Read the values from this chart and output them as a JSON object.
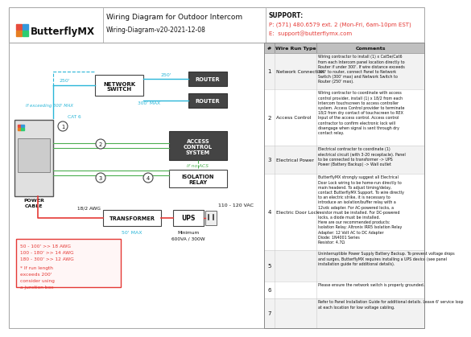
{
  "title": "Wiring Diagram for Outdoor Intercom",
  "subtitle": "Wiring-Diagram-v20-2021-12-08",
  "logo_text": "ButterflyMX",
  "support_label": "SUPPORT:",
  "support_phone": "P: (571) 480.6579 ext. 2 (Mon-Fri, 6am-10pm EST)",
  "support_email": "E:  support@butterflymx.com",
  "bg_color": "#ffffff",
  "cyan_color": "#29b6d8",
  "green_color": "#4caf50",
  "red_color": "#e53935",
  "wire_run_rows": [
    {
      "num": "1",
      "type": "Network Connection",
      "comment": "Wiring contractor to install (1) x Cat5e/Cat6\nfrom each Intercom panel location directly to\nRouter if under 300'. If wire distance exceeds\n300' to router, connect Panel to Network\nSwitch (300' max) and Network Switch to\nRouter (250' max)."
    },
    {
      "num": "2",
      "type": "Access Control",
      "comment": "Wiring contractor to coordinate with access\ncontrol provider, install (1) x 18/2 from each\nIntercom touchscreen to access controller\nsystem. Access Control provider to terminate\n18/2 from dry contact of touchscreen to REX\nInput of the access control. Access control\ncontractor to confirm electronic lock will\ndisengage when signal is sent through dry\ncontact relay."
    },
    {
      "num": "3",
      "type": "Electrical Power",
      "comment": "Electrical contractor to coordinate (1)\nelectrical circuit (with 3-20 receptacle). Panel\nto be connected to transformer -> UPS\nPower (Battery Backup) -> Wall outlet"
    },
    {
      "num": "4",
      "type": "Electric Door Lock",
      "comment": "ButterflyMX strongly suggest all Electrical\nDoor Lock wiring to be home-run directly to\nmain headend. To adjust timing/delay,\ncontact ButterflyMX Support. To wire directly\nto an electric strike, it is necessary to\nintroduce an isolation/buffer relay with a\n12vdc adapter. For AC-powered locks, a\nresistor must be installed. For DC-powered\nlocks, a diode must be installed.\nHere are our recommended products:\nIsolation Relay: Altronix IRR5 Isolation Relay\nAdapter: 12 Volt AC to DC Adapter\nDiode: 1N4001 Series\nResistor: 4.7Ω"
    },
    {
      "num": "5",
      "type": "",
      "comment": "Uninterruptible Power Supply Battery Backup. To prevent voltage drops\nand surges, ButterflyMX requires installing a UPS device (see panel\ninstallation guide for additional details)."
    },
    {
      "num": "6",
      "type": "",
      "comment": "Please ensure the network switch is properly grounded."
    },
    {
      "num": "7",
      "type": "",
      "comment": "Refer to Panel Installation Guide for additional details. Leave 6' service loop\nat each location for low voltage cabling."
    }
  ]
}
